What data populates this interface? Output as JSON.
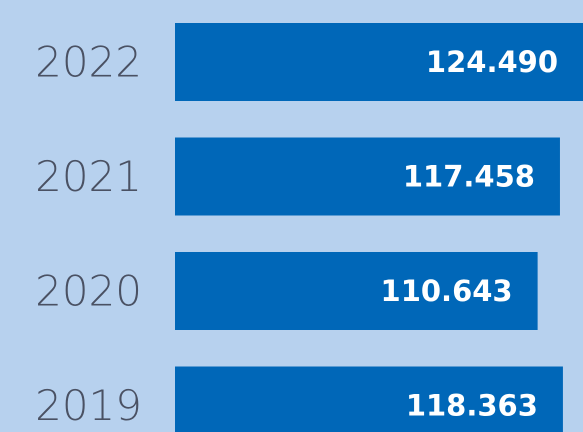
{
  "chart_data": {
    "type": "bar",
    "orientation": "horizontal",
    "categories": [
      "2022",
      "2021",
      "2020",
      "2019"
    ],
    "values": [
      124490,
      117458,
      110643,
      118363
    ],
    "value_labels": [
      "124.490",
      "117.458",
      "110.643",
      "118.363"
    ],
    "color": "#0067b8"
  }
}
